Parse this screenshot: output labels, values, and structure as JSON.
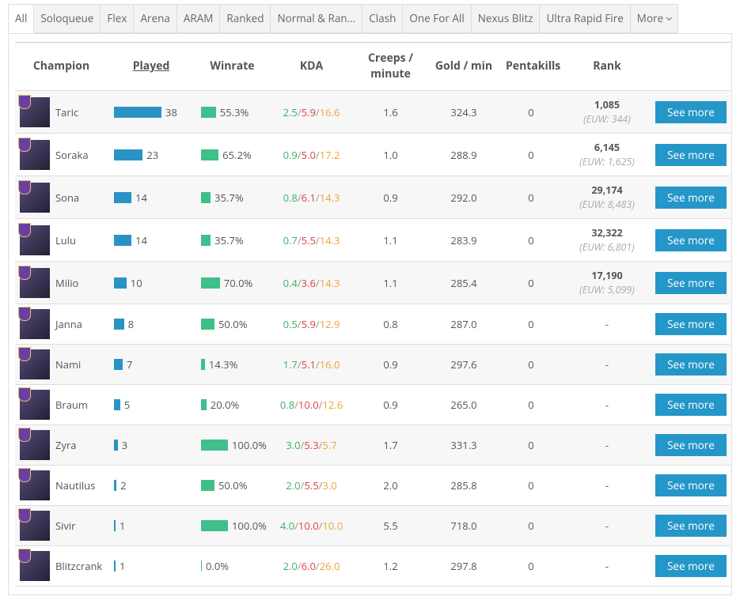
{
  "tabs": [
    "All",
    "Soloqueue",
    "Flex",
    "Arena",
    "ARAM",
    "Ranked",
    "Normal & Ran...",
    "Clash",
    "One For All",
    "Nexus Blitz",
    "Ultra Rapid Fire",
    "More"
  ],
  "table": {
    "headers": [
      "Champion",
      "Played",
      "Winrate",
      "KDA",
      "Creeps / minute",
      "Gold / min",
      "Pentakills",
      "Rank"
    ],
    "rows": [
      {
        "champion": "Taric",
        "played": 38,
        "winrate": {
          "value": 55.3,
          "label": "55.3%"
        },
        "kda": [
          "2.5",
          "5.9",
          "16.6"
        ],
        "creeps": "1.6",
        "gold": "324.3",
        "pentakills": "0",
        "rank": "1,085",
        "rank_region": "(EUW: 344)",
        "button": "See more"
      },
      {
        "champion": "Soraka",
        "played": 23,
        "winrate": {
          "value": 65.2,
          "label": "65.2%"
        },
        "kda": [
          "0.9",
          "5.0",
          "17.2"
        ],
        "creeps": "1.0",
        "gold": "288.9",
        "pentakills": "0",
        "rank": "6,145",
        "rank_region": "(EUW: 1,625)",
        "button": "See more"
      },
      {
        "champion": "Sona",
        "played": 14,
        "winrate": {
          "value": 35.7,
          "label": "35.7%"
        },
        "kda": [
          "0.8",
          "6.1",
          "14.3"
        ],
        "creeps": "0.9",
        "gold": "292.0",
        "pentakills": "0",
        "rank": "29,174",
        "rank_region": "(EUW: 8,483)",
        "button": "See more"
      },
      {
        "champion": "Lulu",
        "played": 14,
        "winrate": {
          "value": 35.7,
          "label": "35.7%"
        },
        "kda": [
          "0.7",
          "5.5",
          "14.3"
        ],
        "creeps": "1.1",
        "gold": "283.9",
        "pentakills": "0",
        "rank": "32,322",
        "rank_region": "(EUW: 6,801)",
        "button": "See more"
      },
      {
        "champion": "Milio",
        "played": 10,
        "winrate": {
          "value": 70.0,
          "label": "70.0%"
        },
        "kda": [
          "0.4",
          "3.6",
          "14.3"
        ],
        "creeps": "1.1",
        "gold": "285.4",
        "pentakills": "0",
        "rank": "17,190",
        "rank_region": "(EUW: 5,099)",
        "button": "See more"
      },
      {
        "champion": "Janna",
        "played": 8,
        "winrate": {
          "value": 50.0,
          "label": "50.0%"
        },
        "kda": [
          "0.5",
          "5.9",
          "12.9"
        ],
        "creeps": "0.8",
        "gold": "287.0",
        "pentakills": "0",
        "rank": "-",
        "button": "See more"
      },
      {
        "champion": "Nami",
        "played": 7,
        "winrate": {
          "value": 14.3,
          "label": "14.3%"
        },
        "kda": [
          "1.7",
          "5.1",
          "16.0"
        ],
        "creeps": "0.9",
        "gold": "297.6",
        "pentakills": "0",
        "rank": "-",
        "button": "See more"
      },
      {
        "champion": "Braum",
        "played": 5,
        "winrate": {
          "value": 20.0,
          "label": "20.0%"
        },
        "kda": [
          "0.8",
          "10.0",
          "12.6"
        ],
        "creeps": "0.9",
        "gold": "265.0",
        "pentakills": "0",
        "rank": "-",
        "button": "See more"
      },
      {
        "champion": "Zyra",
        "played": 3,
        "winrate": {
          "value": 100.0,
          "label": "100.0%"
        },
        "kda": [
          "3.0",
          "5.3",
          "5.7"
        ],
        "creeps": "1.7",
        "gold": "331.3",
        "pentakills": "0",
        "rank": "-",
        "button": "See more"
      },
      {
        "champion": "Nautilus",
        "played": 2,
        "winrate": {
          "value": 50.0,
          "label": "50.0%"
        },
        "kda": [
          "2.0",
          "5.5",
          "3.0"
        ],
        "creeps": "2.0",
        "gold": "285.8",
        "pentakills": "0",
        "rank": "-",
        "button": "See more"
      },
      {
        "champion": "Sivir",
        "played": 1,
        "winrate": {
          "value": 100.0,
          "label": "100.0%"
        },
        "kda": [
          "4.0",
          "10.0",
          "10.0"
        ],
        "creeps": "5.5",
        "gold": "718.0",
        "pentakills": "0",
        "rank": "-",
        "button": "See more"
      },
      {
        "champion": "Blitzcrank",
        "played": 1,
        "winrate": {
          "value": 0.0,
          "label": "0.0%"
        },
        "kda": [
          "2.0",
          "6.0",
          "26.0"
        ],
        "creeps": "1.2",
        "gold": "297.8",
        "pentakills": "0",
        "rank": "-",
        "button": "See more"
      }
    ]
  }
}
